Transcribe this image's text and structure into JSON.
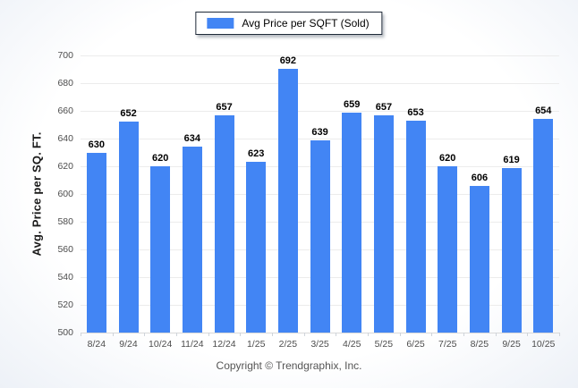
{
  "legend": {
    "label": "Avg Price per SQFT (Sold)",
    "swatch_color": "#4285f4"
  },
  "chart_data": {
    "type": "bar",
    "title": "",
    "xlabel": "",
    "ylabel": "Avg. Price per SQ. FT.",
    "categories": [
      "8/24",
      "9/24",
      "10/24",
      "11/24",
      "12/24",
      "1/25",
      "2/25",
      "3/25",
      "4/25",
      "5/25",
      "6/25",
      "7/25",
      "8/25",
      "9/25",
      "10/25"
    ],
    "values": [
      630,
      652,
      620,
      634,
      657,
      623,
      692,
      639,
      659,
      657,
      653,
      620,
      606,
      619,
      654
    ],
    "ylim": [
      500,
      700
    ],
    "yticks": [
      700,
      680,
      660,
      640,
      620,
      600,
      580,
      560,
      540,
      520,
      500
    ],
    "grid": true,
    "legend_position": "top-center",
    "bar_color": "#4285f4",
    "value_labels": true
  },
  "footer": {
    "copyright": "Copyright © Trendgraphix, Inc."
  }
}
